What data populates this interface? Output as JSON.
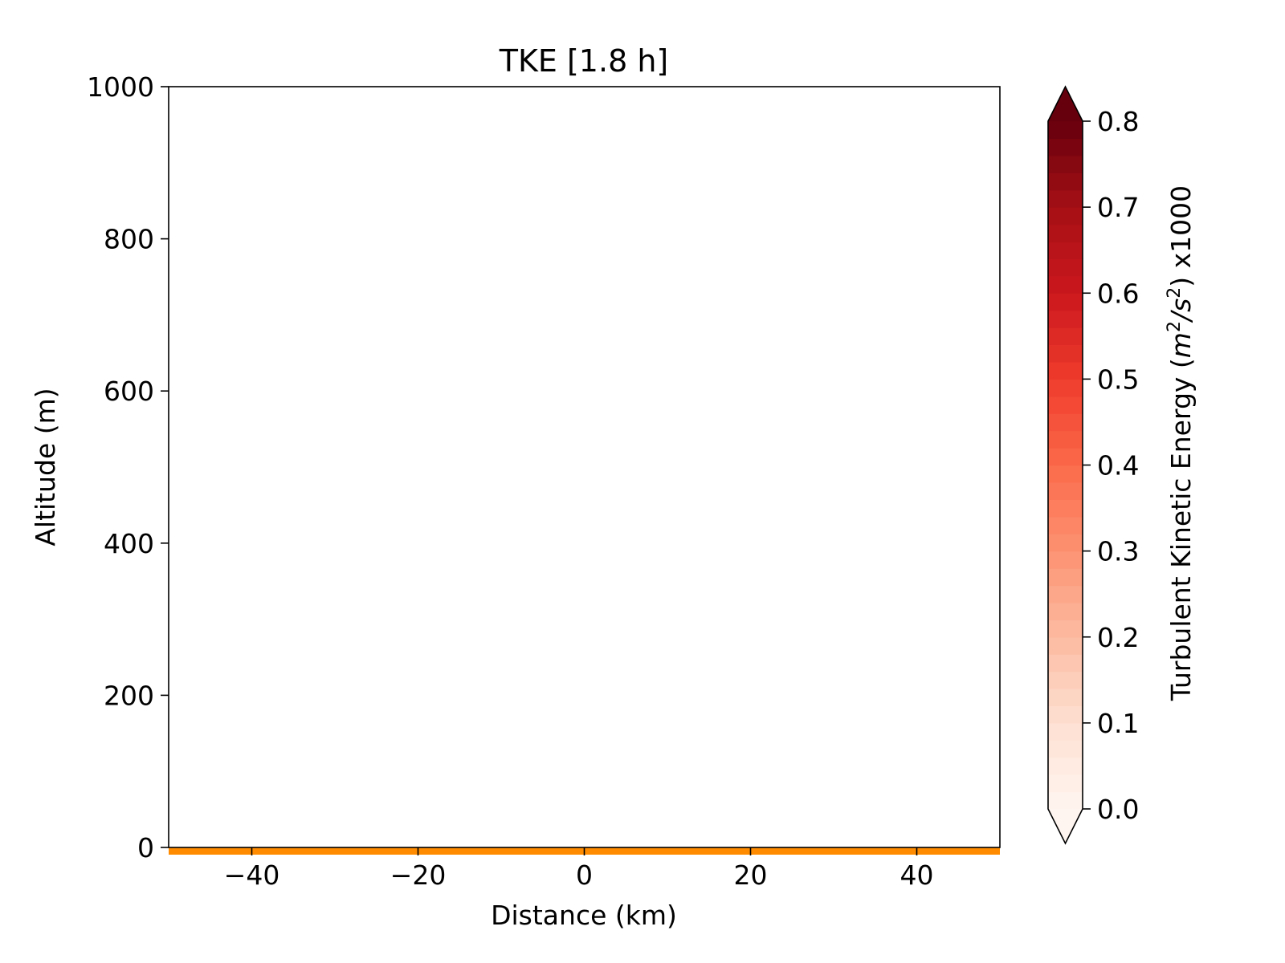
{
  "chart_data": {
    "type": "heatmap",
    "title": "TKE [1.8 h]",
    "xlabel": "Distance (km)",
    "ylabel": "Altitude (m)",
    "xlim": [
      -50,
      50
    ],
    "ylim": [
      0,
      1000
    ],
    "xticks": [
      -40,
      -20,
      0,
      20,
      40
    ],
    "xtick_labels": [
      "−40",
      "−20",
      "0",
      "20",
      "40"
    ],
    "yticks": [
      0,
      200,
      400,
      600,
      800,
      1000
    ],
    "ytick_labels": [
      "0",
      "200",
      "400",
      "600",
      "800",
      "1000"
    ],
    "grid": false,
    "field": "empty",
    "terrain": {
      "altitude": 0,
      "x_range": [
        -50,
        50
      ],
      "color": "#ff8c00"
    },
    "colorbar": {
      "label_main": "Turbulent Kinetic Energy (",
      "label_m": "m",
      "label_m_exp": "2",
      "label_slash": "/",
      "label_s": "s",
      "label_s_exp": "2",
      "label_end": ") x1000",
      "range": [
        0.0,
        0.8
      ],
      "levels": 40,
      "extend": "both",
      "ticks": [
        0.0,
        0.1,
        0.2,
        0.3,
        0.4,
        0.5,
        0.6,
        0.7,
        0.8
      ],
      "tick_labels": [
        "0.0",
        "0.1",
        "0.2",
        "0.3",
        "0.4",
        "0.5",
        "0.6",
        "0.7",
        "0.8"
      ],
      "colormap": "Reds",
      "color_stops": [
        "#fff5f0",
        "#fee0d2",
        "#fcbba1",
        "#fc9272",
        "#fb6a4a",
        "#ef3b2c",
        "#cb181d",
        "#a50f15",
        "#67000d"
      ]
    }
  }
}
